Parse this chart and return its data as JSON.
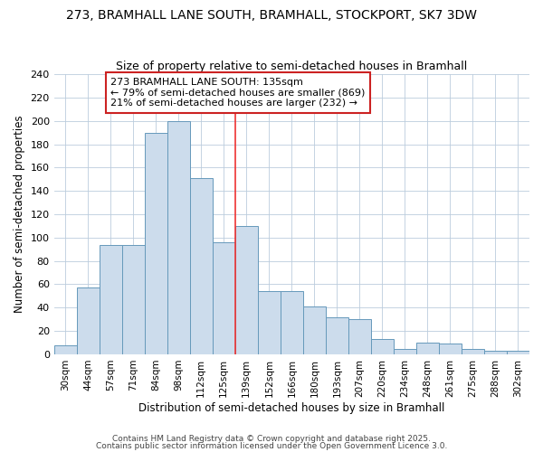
{
  "title": "273, BRAMHALL LANE SOUTH, BRAMHALL, STOCKPORT, SK7 3DW",
  "subtitle": "Size of property relative to semi-detached houses in Bramhall",
  "xlabel": "Distribution of semi-detached houses by size in Bramhall",
  "ylabel": "Number of semi-detached properties",
  "categories": [
    "30sqm",
    "44sqm",
    "57sqm",
    "71sqm",
    "84sqm",
    "98sqm",
    "112sqm",
    "125sqm",
    "139sqm",
    "152sqm",
    "166sqm",
    "180sqm",
    "193sqm",
    "207sqm",
    "220sqm",
    "234sqm",
    "248sqm",
    "261sqm",
    "275sqm",
    "288sqm",
    "302sqm"
  ],
  "bar_values": [
    8,
    57,
    94,
    94,
    190,
    200,
    151,
    96,
    110,
    54,
    54,
    41,
    32,
    30,
    13,
    5,
    10,
    9,
    5,
    3,
    3
  ],
  "bar_color": "#ccdcec",
  "bar_edge_color": "#6699bb",
  "annotation_text_line1": "273 BRAMHALL LANE SOUTH: 135sqm",
  "annotation_text_line2": "← 79% of semi-detached houses are smaller (869)",
  "annotation_text_line3": "21% of semi-detached houses are larger (232) →",
  "vline_color": "#ee3333",
  "annotation_box_edge": "#cc2222",
  "footer1": "Contains HM Land Registry data © Crown copyright and database right 2025.",
  "footer2": "Contains public sector information licensed under the Open Government Licence 3.0.",
  "bg_color": "#ffffff",
  "plot_bg_color": "#ffffff",
  "grid_color": "#bbccdd",
  "ylim": [
    0,
    240
  ],
  "yticks": [
    0,
    20,
    40,
    60,
    80,
    100,
    120,
    140,
    160,
    180,
    200,
    220,
    240
  ],
  "title_fontsize": 10,
  "subtitle_fontsize": 9,
  "vline_bar_index": 8
}
